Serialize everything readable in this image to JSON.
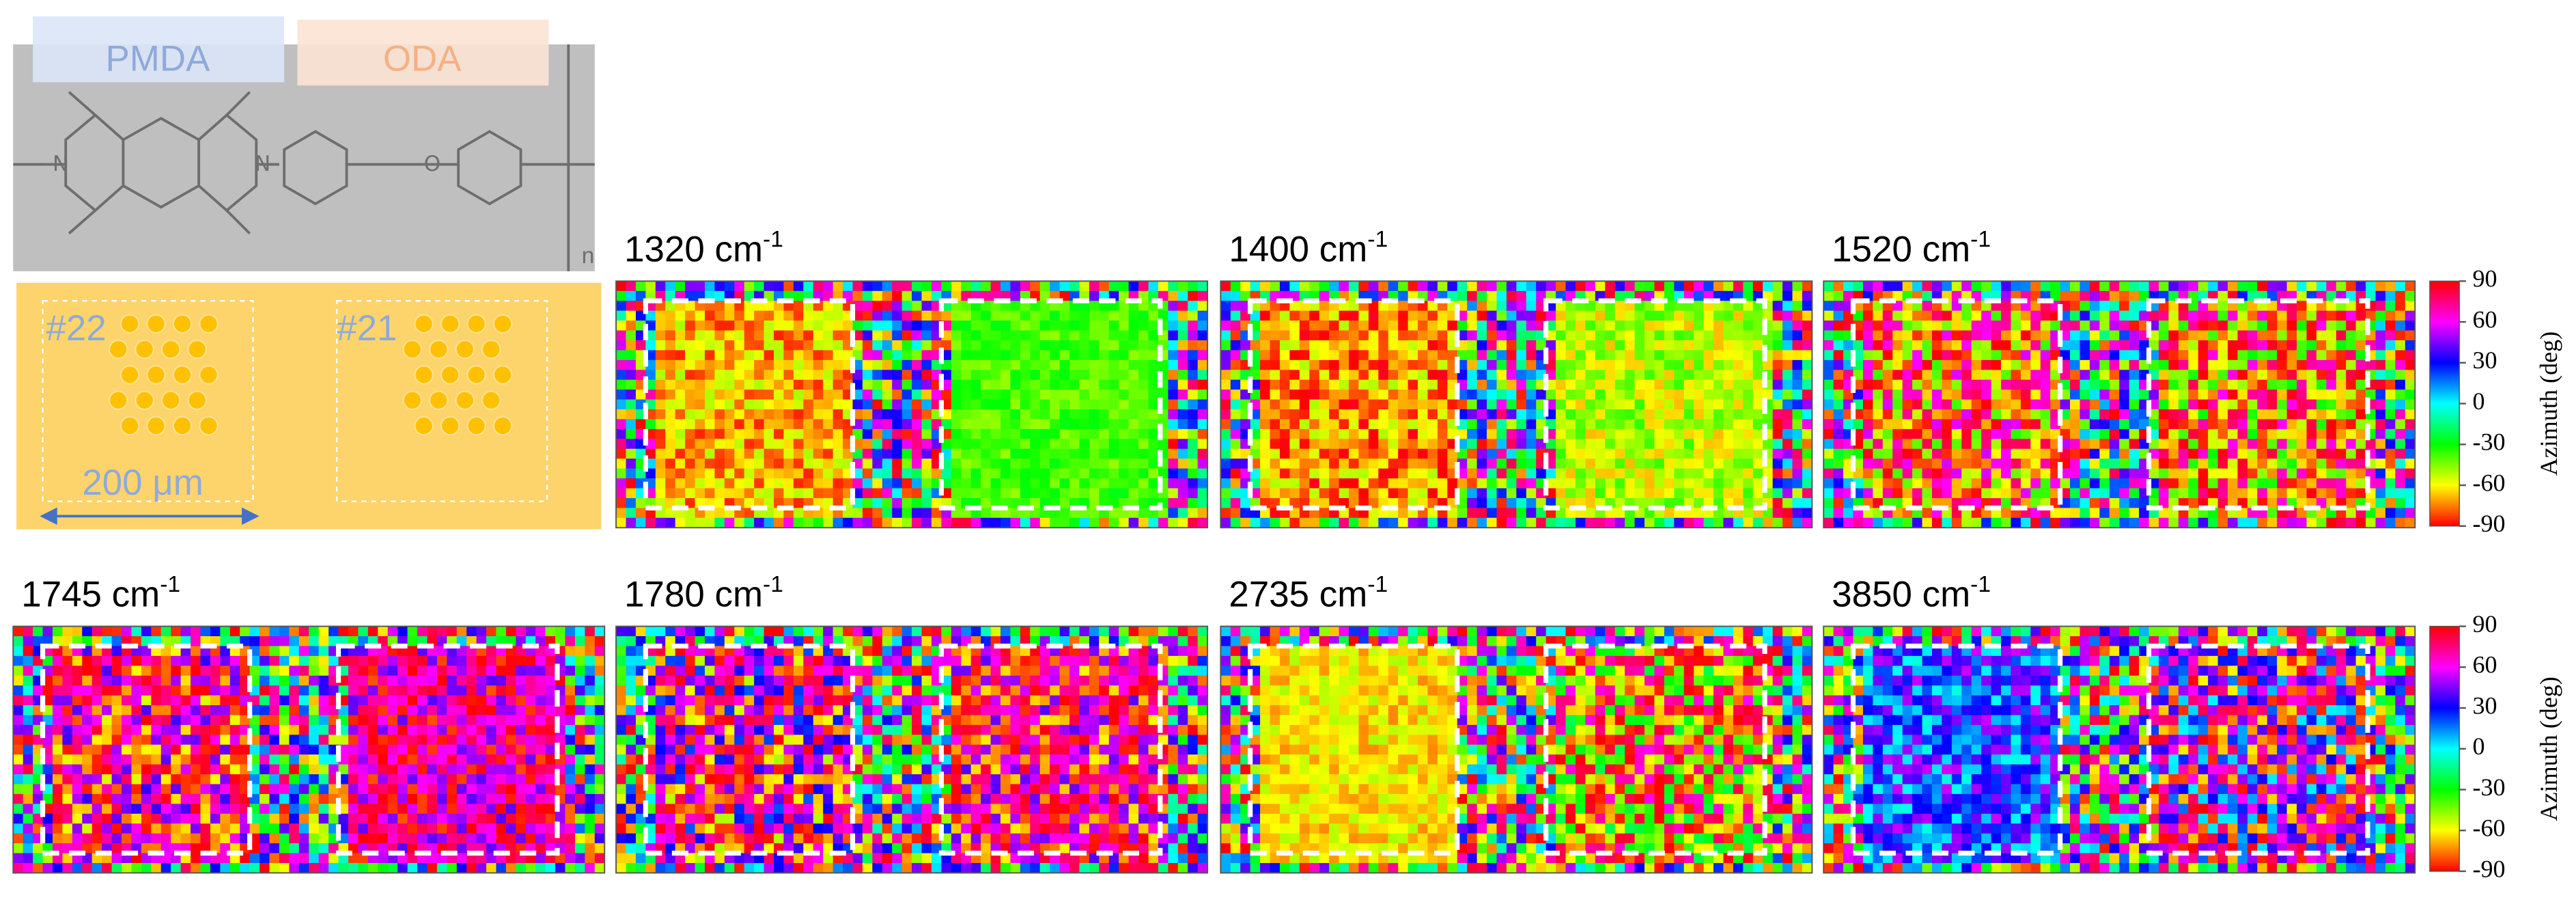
{
  "structure": {
    "labels": [
      "PMDA",
      "ODA"
    ],
    "repeat": "n"
  },
  "sample": {
    "spots": [
      "#22",
      "#21"
    ],
    "scale_bar": "200 μm"
  },
  "maps": [
    {
      "wavenumber": "1320 cm",
      "unit_exp": "-1"
    },
    {
      "wavenumber": "1400 cm",
      "unit_exp": "-1"
    },
    {
      "wavenumber": "1520 cm",
      "unit_exp": "-1"
    },
    {
      "wavenumber": "1745 cm",
      "unit_exp": "-1"
    },
    {
      "wavenumber": "1780 cm",
      "unit_exp": "-1"
    },
    {
      "wavenumber": "2735 cm",
      "unit_exp": "-1"
    },
    {
      "wavenumber": "3850 cm",
      "unit_exp": "-1"
    }
  ],
  "colorbar": {
    "label": "Azimuth (deg)",
    "range": [
      -90,
      90
    ],
    "ticks": [
      90,
      60,
      30,
      0,
      -30,
      -60,
      -90
    ]
  }
}
